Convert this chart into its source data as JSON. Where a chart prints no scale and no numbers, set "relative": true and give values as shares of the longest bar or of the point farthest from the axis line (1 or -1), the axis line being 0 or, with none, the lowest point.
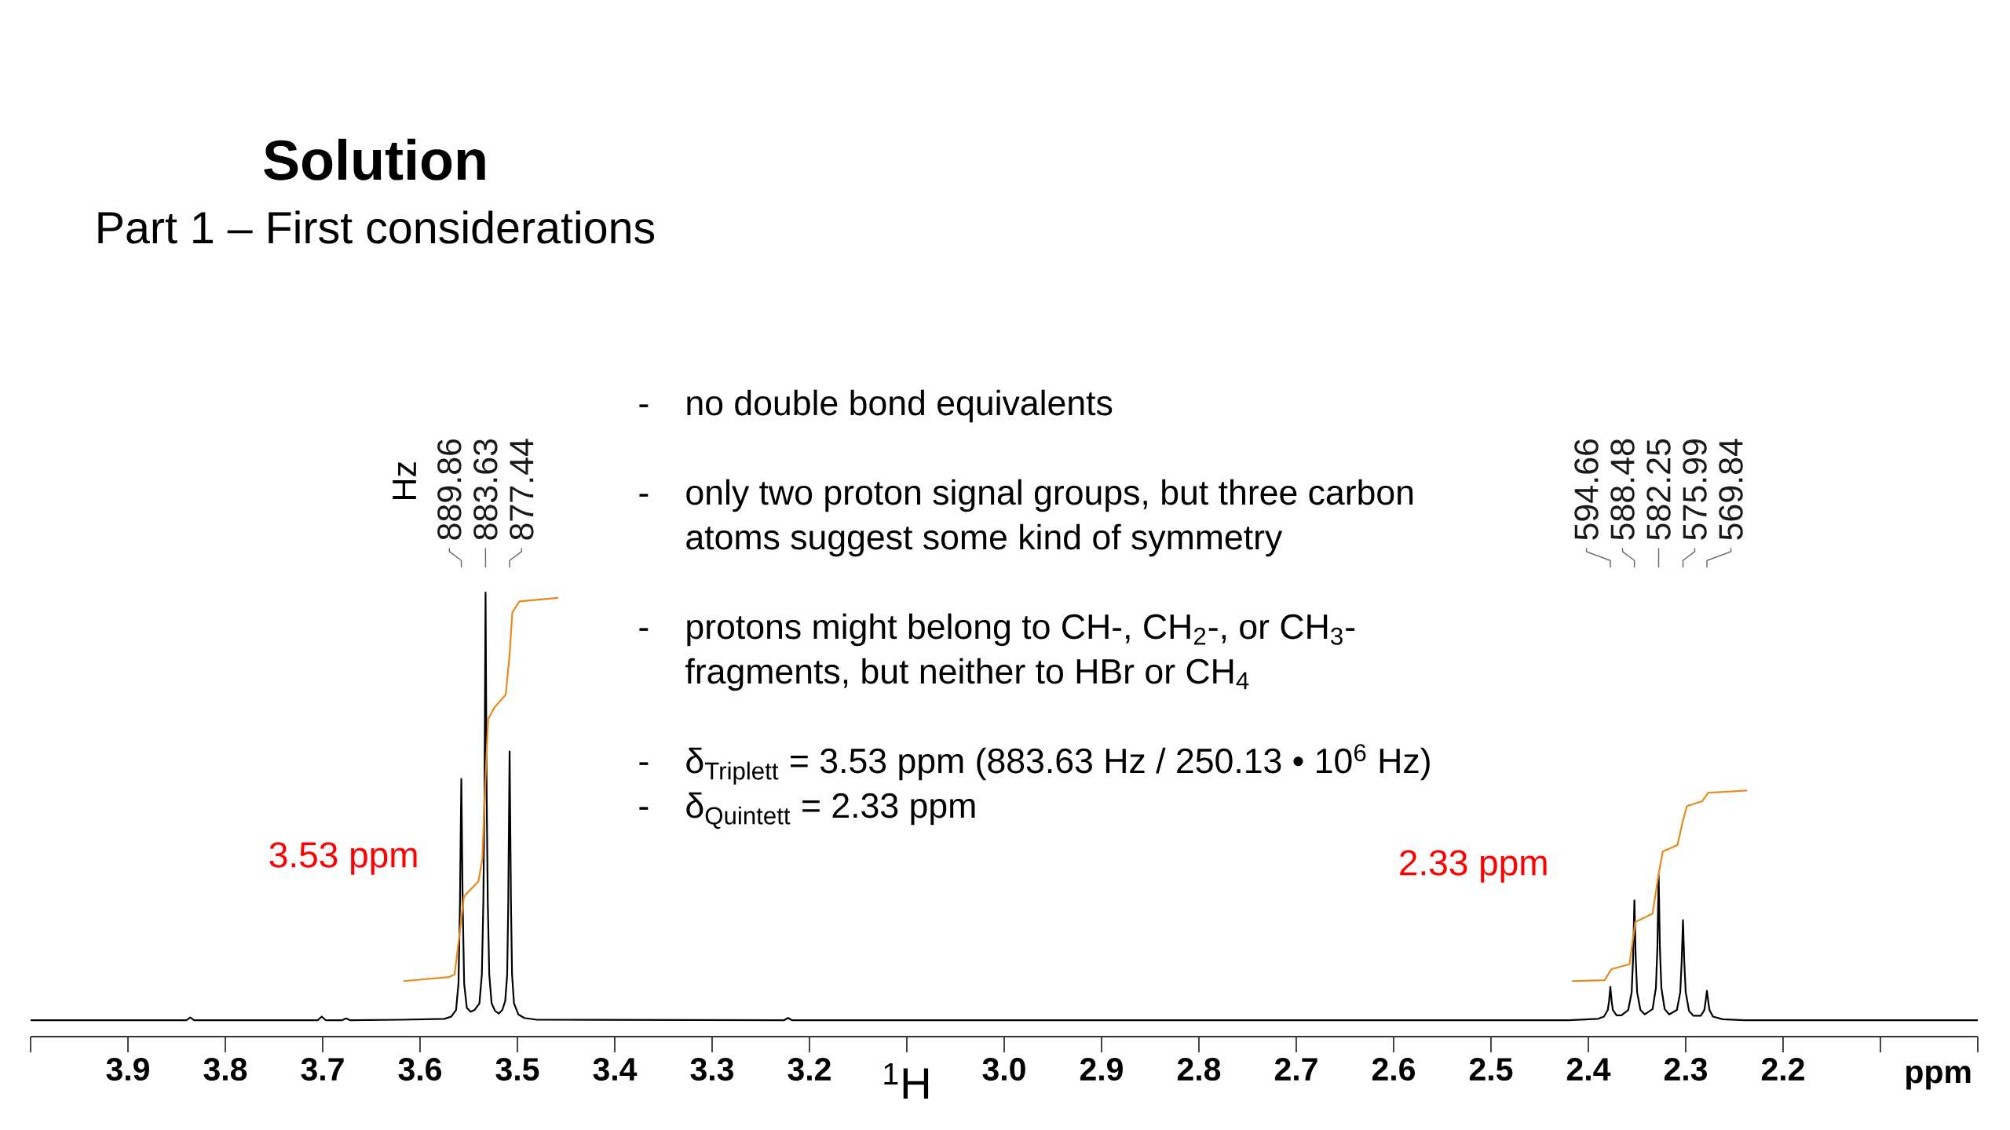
{
  "chart_data": {
    "type": "line",
    "title": "Solution",
    "subtitle": "Part 1 – First considerations",
    "xlabel": "ppm",
    "relative": true,
    "xlim": [
      4.0,
      2.0
    ],
    "xticks": [
      3.9,
      3.8,
      3.7,
      3.6,
      3.5,
      3.4,
      3.3,
      3.2,
      {
        "value": 3.0,
        "label": "3.0"
      },
      2.9,
      2.8,
      2.7,
      2.6,
      2.5,
      2.4,
      2.3,
      2.2
    ],
    "series": [
      {
        "color": "#000000",
        "x": [
          4.0,
          3.84,
          3.836,
          3.832,
          3.705,
          3.701,
          3.697,
          3.68,
          3.676,
          3.672,
          3.62,
          3.575,
          3.568,
          3.563,
          3.5605,
          3.559,
          3.5576,
          3.5562,
          3.5547,
          3.552,
          3.548,
          3.544,
          3.539,
          3.5365,
          3.535,
          3.5338,
          3.5327,
          3.5316,
          3.5304,
          3.5289,
          3.5265,
          3.523,
          3.519,
          3.5155,
          3.5125,
          3.5105,
          3.5094,
          3.508,
          3.5066,
          3.5055,
          3.5035,
          3.499,
          3.493,
          3.48,
          3.226,
          3.222,
          3.218,
          2.42,
          2.39,
          2.384,
          2.38,
          2.3787,
          2.3774,
          2.3761,
          2.3748,
          2.371,
          2.366,
          2.359,
          2.3555,
          2.354,
          2.3527,
          2.3514,
          2.3499,
          2.3465,
          2.342,
          2.334,
          2.3306,
          2.3291,
          2.3278,
          2.3265,
          2.325,
          2.3216,
          2.317,
          2.309,
          2.3056,
          2.3041,
          2.3028,
          2.3015,
          2.3,
          2.2966,
          2.292,
          2.2845,
          2.2808,
          2.2795,
          2.2782,
          2.2769,
          2.2756,
          2.272,
          2.262,
          2.24,
          2.0
        ],
        "values": [
          0.037,
          0.037,
          0.043,
          0.037,
          0.037,
          0.045,
          0.037,
          0.037,
          0.041,
          0.037,
          0.038,
          0.04,
          0.045,
          0.06,
          0.12,
          0.3,
          0.58,
          0.3,
          0.12,
          0.065,
          0.056,
          0.06,
          0.075,
          0.14,
          0.3,
          0.55,
          1.0,
          0.55,
          0.3,
          0.14,
          0.075,
          0.058,
          0.052,
          0.06,
          0.08,
          0.14,
          0.3,
          0.642,
          0.3,
          0.14,
          0.075,
          0.05,
          0.042,
          0.038,
          0.037,
          0.042,
          0.037,
          0.037,
          0.04,
          0.045,
          0.06,
          0.08,
          0.112,
          0.08,
          0.06,
          0.048,
          0.048,
          0.06,
          0.1,
          0.18,
          0.307,
          0.18,
          0.1,
          0.06,
          0.05,
          0.062,
          0.11,
          0.2,
          0.364,
          0.2,
          0.11,
          0.062,
          0.05,
          0.06,
          0.1,
          0.17,
          0.262,
          0.17,
          0.1,
          0.058,
          0.047,
          0.047,
          0.06,
          0.08,
          0.103,
          0.08,
          0.06,
          0.045,
          0.039,
          0.037,
          0.037
        ]
      },
      {
        "color": "#e8891a",
        "x": [
          3.617,
          3.5705,
          3.5645,
          3.56,
          3.555,
          3.54,
          3.536,
          3.5334,
          3.53,
          3.524,
          3.512,
          3.508,
          3.5052,
          3.498,
          3.458
        ],
        "values": [
          0.125,
          0.134,
          0.14,
          0.22,
          0.315,
          0.35,
          0.4,
          0.55,
          0.715,
          0.74,
          0.77,
          0.86,
          0.955,
          0.98,
          0.988
        ]
      },
      {
        "color": "#e8891a",
        "x": [
          2.4168,
          2.3833,
          2.3762,
          2.3577,
          2.3518,
          2.334,
          2.328,
          2.3235,
          2.3085,
          2.3026,
          2.2987,
          2.283,
          2.277,
          2.237
        ],
        "values": [
          0.125,
          0.127,
          0.152,
          0.163,
          0.258,
          0.277,
          0.364,
          0.417,
          0.431,
          0.488,
          0.519,
          0.53,
          0.549,
          0.554
        ]
      }
    ],
    "annotations": [
      "no double bond equivalents",
      "only two proton signal groups, but three carbon atoms suggest some kind of symmetry",
      "protons might belong to CH-, CH$_{2}$-, or CH$_{3}$-fragments, but neither to HBr or CH$_{4}$",
      "δ$_{Triplett}$ = 3.53 ppm (883.63 Hz / 250.13 • 10$^{6}$ Hz)",
      "δ$_{Quintett}$ = 2.33 ppm",
      "Hz",
      "3.53 ppm",
      "2.33 ppm",
      "$^{1}$H",
      "889.86",
      "883.63",
      "877.44",
      "594.66",
      "588.48",
      "582.25",
      "575.99",
      "569.84",
      "-",
      "-",
      "-",
      "-",
      "-"
    ]
  }
}
